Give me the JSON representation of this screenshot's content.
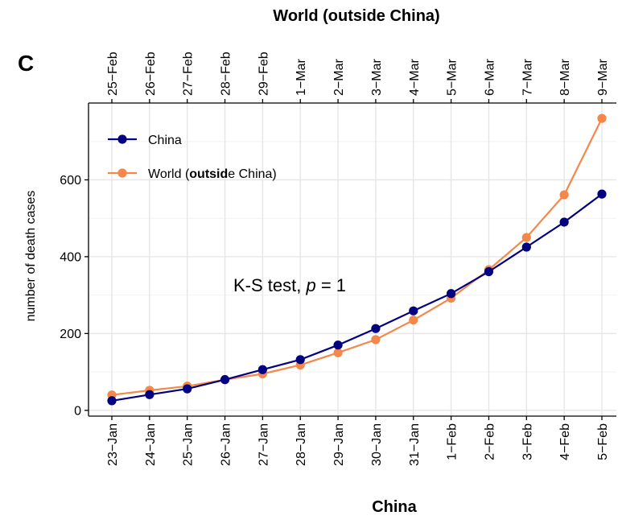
{
  "chart_data": {
    "type": "line",
    "panel_label": "C",
    "title": "World (outside China)",
    "xlabel": "China",
    "ylabel": "number of death cases",
    "categories": [
      "23−Jan",
      "24−Jan",
      "25−Jan",
      "26−Jan",
      "27−Jan",
      "28−Jan",
      "29−Jan",
      "30−Jan",
      "31−Jan",
      "1−Feb",
      "2−Feb",
      "3−Feb",
      "4−Feb",
      "5−Feb"
    ],
    "top_categories": [
      "25−Feb",
      "26−Feb",
      "27−Feb",
      "28−Feb",
      "29−Feb",
      "1−Mar",
      "2−Mar",
      "3−Mar",
      "4−Mar",
      "5−Mar",
      "6−Mar",
      "7−Mar",
      "8−Mar",
      "9−Mar"
    ],
    "yticks": [
      0,
      200,
      400,
      600
    ],
    "ylim": [
      -15,
      800
    ],
    "grid": true,
    "legend_position": "top-left",
    "series": [
      {
        "name": "China",
        "color": "#000080",
        "values": [
          25,
          41,
          56,
          80,
          106,
          132,
          170,
          213,
          259,
          304,
          361,
          425,
          490,
          563
        ]
      },
      {
        "name": "World (outside China)",
        "color": "#f4884a",
        "values": [
          40,
          52,
          63,
          80,
          95,
          118,
          150,
          184,
          235,
          292,
          366,
          450,
          561,
          760
        ]
      }
    ],
    "legend_segments": [
      [
        {
          "text": "World (",
          "bold": false
        },
        {
          "text": "outsid",
          "bold": true
        },
        {
          "text": "e China)",
          "bold": false
        }
      ]
    ],
    "annotation": {
      "prefix": "K-S test, ",
      "italic": "p",
      "suffix": " = 1"
    }
  }
}
